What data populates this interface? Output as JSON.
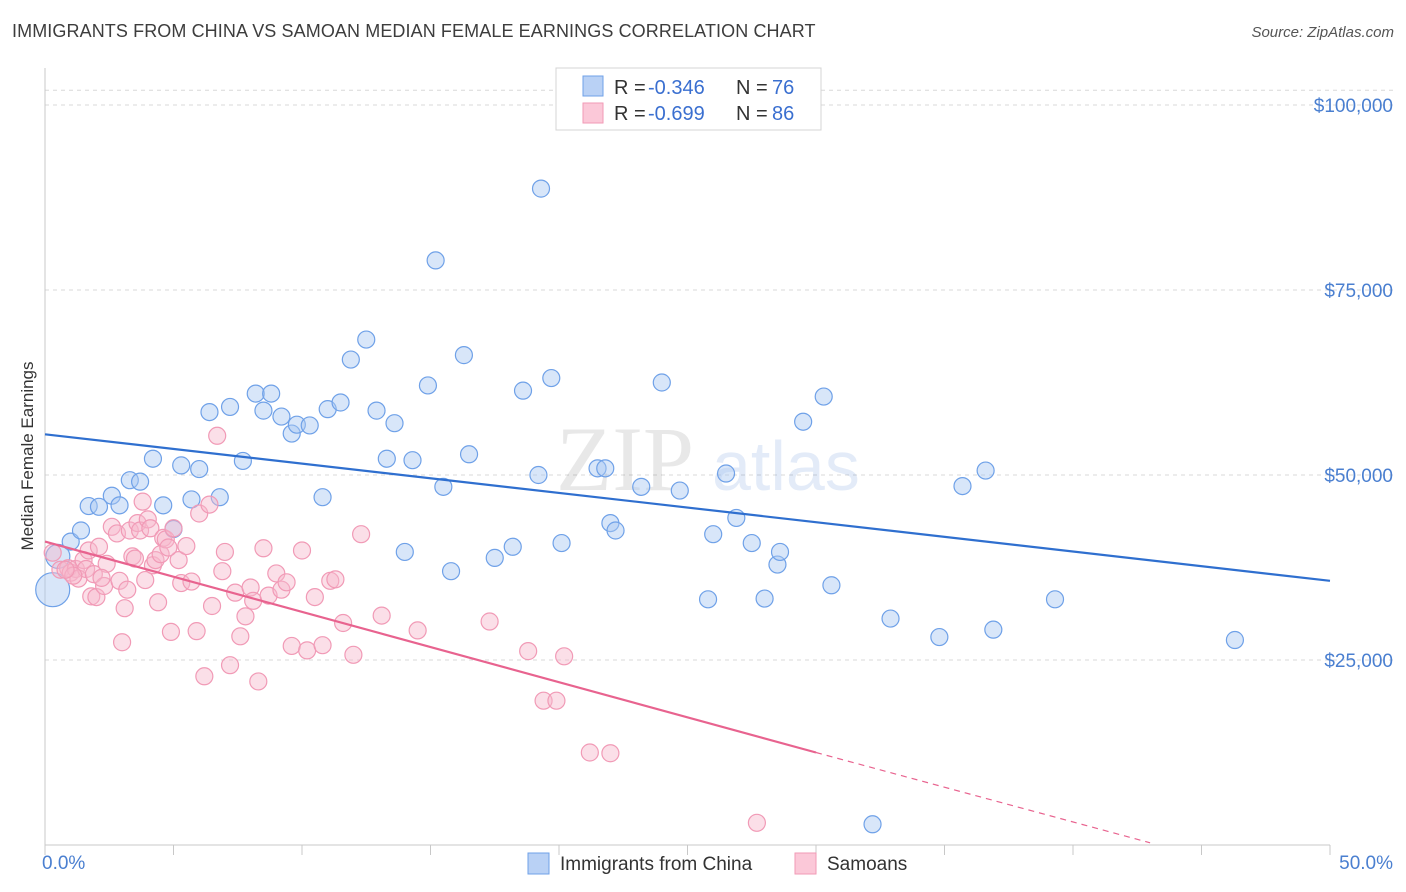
{
  "header": {
    "title": "IMMIGRANTS FROM CHINA VS SAMOAN MEDIAN FEMALE EARNINGS CORRELATION CHART",
    "source": "Source: ZipAtlas.com"
  },
  "watermark": {
    "zip": "ZIP",
    "atlas": "atlas"
  },
  "colors": {
    "blue": "#6fa1e8",
    "blue_line": "#2f6fcf",
    "pink": "#f19ab6",
    "pink_line": "#e8638f",
    "grid": "#d8d8d8",
    "tick_text": "#4a7fd0"
  },
  "legend": {
    "rows": [
      {
        "r_label": "R = ",
        "r_value": "-0.346",
        "n_label": "N = ",
        "n_value": "76",
        "color": "blue"
      },
      {
        "r_label": "R = ",
        "r_value": "-0.699",
        "n_label": "N = ",
        "n_value": "86",
        "color": "pink"
      }
    ]
  },
  "bottom_legend": [
    {
      "label": "Immigrants from China",
      "color": "blue"
    },
    {
      "label": "Samoans",
      "color": "pink"
    }
  ],
  "chart_data": {
    "type": "scatter",
    "title": "IMMIGRANTS FROM CHINA VS SAMOAN MEDIAN FEMALE EARNINGS CORRELATION CHART",
    "xlabel": "",
    "ylabel": "Median Female Earnings",
    "xlim": [
      0,
      50
    ],
    "ylim": [
      0,
      105000
    ],
    "x_tick_labels": [
      "0.0%",
      "50.0%"
    ],
    "y_ticks": [
      25000,
      50000,
      75000,
      100000
    ],
    "y_tick_labels": [
      "$25,000",
      "$50,000",
      "$75,000",
      "$100,000"
    ],
    "grid": "horizontal dashed",
    "legend_placement": "top-center",
    "series": [
      {
        "name": "Immigrants from China",
        "color": "blue",
        "trend": {
          "x": [
            0,
            50
          ],
          "y": [
            55500,
            35700
          ]
        },
        "points": [
          [
            0.3,
            34500,
            3
          ],
          [
            0.5,
            39000,
            2
          ],
          [
            1.0,
            41000,
            1
          ],
          [
            1.4,
            42500,
            1
          ],
          [
            1.7,
            45800,
            1
          ],
          [
            2.1,
            45700,
            1
          ],
          [
            2.6,
            47200,
            1
          ],
          [
            2.9,
            45900,
            1
          ],
          [
            3.3,
            49300,
            1
          ],
          [
            3.7,
            49100,
            1
          ],
          [
            4.2,
            52200,
            1
          ],
          [
            4.6,
            45900,
            1
          ],
          [
            5.0,
            42700,
            1
          ],
          [
            5.3,
            51300,
            1
          ],
          [
            5.7,
            46700,
            1
          ],
          [
            6.0,
            50800,
            1
          ],
          [
            6.4,
            58500,
            1
          ],
          [
            6.8,
            47000,
            1
          ],
          [
            7.2,
            59200,
            1
          ],
          [
            7.7,
            51900,
            1
          ],
          [
            8.2,
            61000,
            1
          ],
          [
            8.5,
            58700,
            1
          ],
          [
            8.8,
            61000,
            1
          ],
          [
            9.2,
            57900,
            1
          ],
          [
            9.6,
            55600,
            1
          ],
          [
            9.8,
            56800,
            1
          ],
          [
            10.3,
            56700,
            1
          ],
          [
            10.8,
            47000,
            1
          ],
          [
            11.0,
            58900,
            1
          ],
          [
            11.5,
            59800,
            1
          ],
          [
            11.9,
            65600,
            1
          ],
          [
            12.5,
            68300,
            1
          ],
          [
            12.9,
            58700,
            1
          ],
          [
            13.3,
            52200,
            1
          ],
          [
            13.6,
            57000,
            1
          ],
          [
            14.0,
            39600,
            1
          ],
          [
            14.3,
            52000,
            1
          ],
          [
            14.9,
            62100,
            1
          ],
          [
            15.2,
            79000,
            1
          ],
          [
            15.5,
            48400,
            1
          ],
          [
            15.8,
            37000,
            1
          ],
          [
            16.3,
            66200,
            1
          ],
          [
            16.5,
            52800,
            1
          ],
          [
            17.5,
            38800,
            1
          ],
          [
            18.2,
            40300,
            1
          ],
          [
            18.6,
            61400,
            1
          ],
          [
            19.3,
            88700,
            1
          ],
          [
            19.2,
            50000,
            1
          ],
          [
            19.7,
            63100,
            1
          ],
          [
            20.1,
            40800,
            1
          ],
          [
            21.5,
            50900,
            1
          ],
          [
            21.8,
            50900,
            1
          ],
          [
            22.0,
            43500,
            1
          ],
          [
            22.2,
            42500,
            1
          ],
          [
            23.2,
            48400,
            1
          ],
          [
            24.0,
            62500,
            1
          ],
          [
            24.7,
            47900,
            1
          ],
          [
            25.8,
            33200,
            1
          ],
          [
            26.0,
            42000,
            1
          ],
          [
            26.5,
            50200,
            1
          ],
          [
            26.9,
            44200,
            1
          ],
          [
            27.5,
            40800,
            1
          ],
          [
            28.0,
            33300,
            1
          ],
          [
            28.5,
            37900,
            1
          ],
          [
            28.6,
            39600,
            1
          ],
          [
            29.5,
            57200,
            1
          ],
          [
            30.3,
            60600,
            1
          ],
          [
            30.6,
            35100,
            1
          ],
          [
            32.2,
            2800,
            1
          ],
          [
            32.9,
            30600,
            1
          ],
          [
            34.8,
            28100,
            1
          ],
          [
            35.7,
            48500,
            1
          ],
          [
            36.6,
            50600,
            1
          ],
          [
            36.9,
            29100,
            1
          ],
          [
            39.3,
            33200,
            1
          ],
          [
            46.3,
            27700,
            1
          ]
        ]
      },
      {
        "name": "Samoans",
        "color": "pink",
        "trend": {
          "x": [
            0,
            30
          ],
          "y": [
            41000,
            12500
          ]
        },
        "trend_dashed": {
          "x": [
            30,
            43
          ],
          "y": [
            12500,
            300
          ]
        },
        "points": [
          [
            0.3,
            39500,
            1
          ],
          [
            0.6,
            37200,
            1
          ],
          [
            0.9,
            37400,
            1
          ],
          [
            1.0,
            36800,
            1
          ],
          [
            1.2,
            37300,
            1
          ],
          [
            1.3,
            36000,
            1
          ],
          [
            1.5,
            38500,
            1
          ],
          [
            1.6,
            37300,
            1
          ],
          [
            1.7,
            39800,
            1
          ],
          [
            1.8,
            33600,
            1
          ],
          [
            1.9,
            36600,
            1
          ],
          [
            2.0,
            33500,
            1
          ],
          [
            2.1,
            40300,
            1
          ],
          [
            2.3,
            35000,
            1
          ],
          [
            2.4,
            38000,
            1
          ],
          [
            2.6,
            43000,
            1
          ],
          [
            2.8,
            42100,
            1
          ],
          [
            2.9,
            35700,
            1
          ],
          [
            3.0,
            27400,
            1
          ],
          [
            3.1,
            32000,
            1
          ],
          [
            3.2,
            34500,
            1
          ],
          [
            3.3,
            42500,
            1
          ],
          [
            3.4,
            39000,
            1
          ],
          [
            3.5,
            38700,
            1
          ],
          [
            3.6,
            43500,
            1
          ],
          [
            3.7,
            42500,
            1
          ],
          [
            3.9,
            35800,
            1
          ],
          [
            4.0,
            44000,
            1
          ],
          [
            4.1,
            42800,
            1
          ],
          [
            4.2,
            37800,
            1
          ],
          [
            4.3,
            38500,
            1
          ],
          [
            4.4,
            32800,
            1
          ],
          [
            4.5,
            39300,
            1
          ],
          [
            4.6,
            41500,
            1
          ],
          [
            4.7,
            41300,
            1
          ],
          [
            4.9,
            28800,
            1
          ],
          [
            5.0,
            42800,
            1
          ],
          [
            5.2,
            38500,
            1
          ],
          [
            5.3,
            35400,
            1
          ],
          [
            5.5,
            40400,
            1
          ],
          [
            5.7,
            35600,
            1
          ],
          [
            5.9,
            28900,
            1
          ],
          [
            6.0,
            44800,
            1
          ],
          [
            6.2,
            22800,
            1
          ],
          [
            6.4,
            46000,
            1
          ],
          [
            6.5,
            32300,
            1
          ],
          [
            6.7,
            55300,
            1
          ],
          [
            6.9,
            37000,
            1
          ],
          [
            7.0,
            39600,
            1
          ],
          [
            7.2,
            24300,
            1
          ],
          [
            7.4,
            34100,
            1
          ],
          [
            7.6,
            28200,
            1
          ],
          [
            7.8,
            30900,
            1
          ],
          [
            8.0,
            34800,
            1
          ],
          [
            8.1,
            33000,
            1
          ],
          [
            8.3,
            22100,
            1
          ],
          [
            8.5,
            40100,
            1
          ],
          [
            8.7,
            33700,
            1
          ],
          [
            9.0,
            36700,
            1
          ],
          [
            9.2,
            34500,
            1
          ],
          [
            9.4,
            35500,
            1
          ],
          [
            9.6,
            26900,
            1
          ],
          [
            10.0,
            39800,
            1
          ],
          [
            10.2,
            26300,
            1
          ],
          [
            10.5,
            33500,
            1
          ],
          [
            10.8,
            27000,
            1
          ],
          [
            11.1,
            35700,
            1
          ],
          [
            11.3,
            35900,
            1
          ],
          [
            11.6,
            30000,
            1
          ],
          [
            12.0,
            25700,
            1
          ],
          [
            12.3,
            42000,
            1
          ],
          [
            13.1,
            31000,
            1
          ],
          [
            14.5,
            29000,
            1
          ],
          [
            17.3,
            30200,
            1
          ],
          [
            18.8,
            26200,
            1
          ],
          [
            19.4,
            19500,
            1
          ],
          [
            19.9,
            19500,
            1
          ],
          [
            20.2,
            25500,
            1
          ],
          [
            21.2,
            12500,
            1
          ],
          [
            22.0,
            12400,
            1
          ],
          [
            27.7,
            3000,
            1
          ],
          [
            4.8,
            40200,
            1
          ],
          [
            3.8,
            46400,
            1
          ],
          [
            2.2,
            36100,
            1
          ],
          [
            1.1,
            36400,
            1
          ],
          [
            0.8,
            37200,
            1
          ]
        ]
      }
    ]
  }
}
